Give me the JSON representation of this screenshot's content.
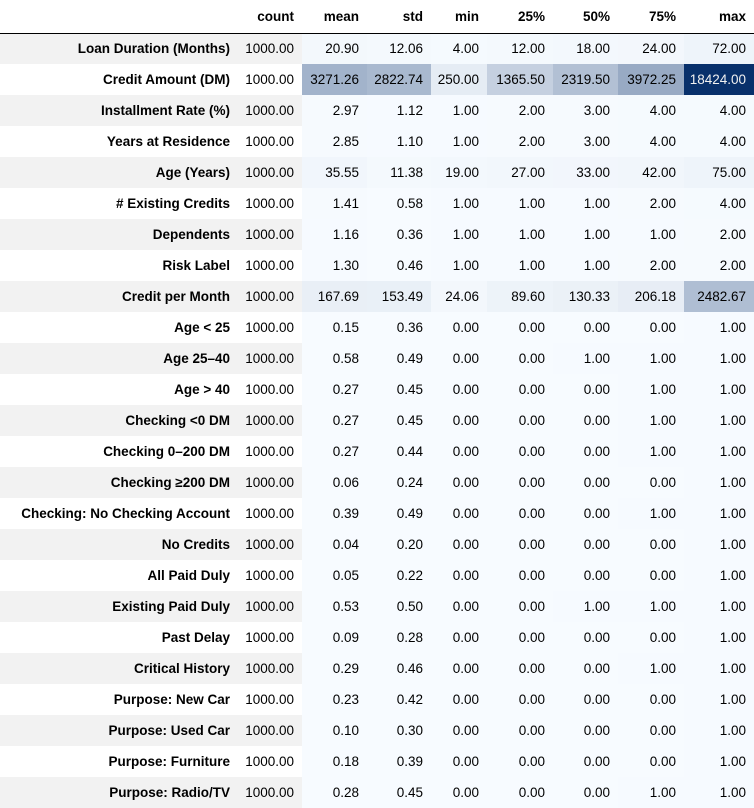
{
  "chart_data": {
    "type": "table",
    "columns": [
      "count",
      "mean",
      "std",
      "min",
      "25%",
      "50%",
      "75%",
      "max"
    ],
    "rows": [
      {
        "label": "Loan Duration (Months)",
        "values": [
          "1000.00",
          "20.90",
          "12.06",
          "4.00",
          "12.00",
          "18.00",
          "24.00",
          "72.00"
        ]
      },
      {
        "label": "Credit Amount (DM)",
        "values": [
          "1000.00",
          "3271.26",
          "2822.74",
          "250.00",
          "1365.50",
          "2319.50",
          "3972.25",
          "18424.00"
        ]
      },
      {
        "label": "Installment Rate (%)",
        "values": [
          "1000.00",
          "2.97",
          "1.12",
          "1.00",
          "2.00",
          "3.00",
          "4.00",
          "4.00"
        ]
      },
      {
        "label": "Years at Residence",
        "values": [
          "1000.00",
          "2.85",
          "1.10",
          "1.00",
          "2.00",
          "3.00",
          "4.00",
          "4.00"
        ]
      },
      {
        "label": "Age (Years)",
        "values": [
          "1000.00",
          "35.55",
          "11.38",
          "19.00",
          "27.00",
          "33.00",
          "42.00",
          "75.00"
        ]
      },
      {
        "label": "# Existing Credits",
        "values": [
          "1000.00",
          "1.41",
          "0.58",
          "1.00",
          "1.00",
          "1.00",
          "2.00",
          "4.00"
        ]
      },
      {
        "label": "Dependents",
        "values": [
          "1000.00",
          "1.16",
          "0.36",
          "1.00",
          "1.00",
          "1.00",
          "1.00",
          "2.00"
        ]
      },
      {
        "label": "Risk Label",
        "values": [
          "1000.00",
          "1.30",
          "0.46",
          "1.00",
          "1.00",
          "1.00",
          "2.00",
          "2.00"
        ]
      },
      {
        "label": "Credit per Month",
        "values": [
          "1000.00",
          "167.69",
          "153.49",
          "24.06",
          "89.60",
          "130.33",
          "206.18",
          "2482.67"
        ]
      },
      {
        "label": "Age < 25",
        "values": [
          "1000.00",
          "0.15",
          "0.36",
          "0.00",
          "0.00",
          "0.00",
          "0.00",
          "1.00"
        ]
      },
      {
        "label": "Age 25–40",
        "values": [
          "1000.00",
          "0.58",
          "0.49",
          "0.00",
          "0.00",
          "1.00",
          "1.00",
          "1.00"
        ]
      },
      {
        "label": "Age > 40",
        "values": [
          "1000.00",
          "0.27",
          "0.45",
          "0.00",
          "0.00",
          "0.00",
          "1.00",
          "1.00"
        ]
      },
      {
        "label": "Checking <0 DM",
        "values": [
          "1000.00",
          "0.27",
          "0.45",
          "0.00",
          "0.00",
          "0.00",
          "1.00",
          "1.00"
        ]
      },
      {
        "label": "Checking 0–200 DM",
        "values": [
          "1000.00",
          "0.27",
          "0.44",
          "0.00",
          "0.00",
          "0.00",
          "1.00",
          "1.00"
        ]
      },
      {
        "label": "Checking ≥200 DM",
        "values": [
          "1000.00",
          "0.06",
          "0.24",
          "0.00",
          "0.00",
          "0.00",
          "0.00",
          "1.00"
        ]
      },
      {
        "label": "Checking: No Checking Account",
        "values": [
          "1000.00",
          "0.39",
          "0.49",
          "0.00",
          "0.00",
          "0.00",
          "1.00",
          "1.00"
        ]
      },
      {
        "label": "No Credits",
        "values": [
          "1000.00",
          "0.04",
          "0.20",
          "0.00",
          "0.00",
          "0.00",
          "0.00",
          "1.00"
        ]
      },
      {
        "label": "All Paid Duly",
        "values": [
          "1000.00",
          "0.05",
          "0.22",
          "0.00",
          "0.00",
          "0.00",
          "0.00",
          "1.00"
        ]
      },
      {
        "label": "Existing Paid Duly",
        "values": [
          "1000.00",
          "0.53",
          "0.50",
          "0.00",
          "0.00",
          "1.00",
          "1.00",
          "1.00"
        ]
      },
      {
        "label": "Past Delay",
        "values": [
          "1000.00",
          "0.09",
          "0.28",
          "0.00",
          "0.00",
          "0.00",
          "0.00",
          "1.00"
        ]
      },
      {
        "label": "Critical History",
        "values": [
          "1000.00",
          "0.29",
          "0.46",
          "0.00",
          "0.00",
          "0.00",
          "1.00",
          "1.00"
        ]
      },
      {
        "label": "Purpose: New Car",
        "values": [
          "1000.00",
          "0.23",
          "0.42",
          "0.00",
          "0.00",
          "0.00",
          "0.00",
          "1.00"
        ]
      },
      {
        "label": "Purpose: Used Car",
        "values": [
          "1000.00",
          "0.10",
          "0.30",
          "0.00",
          "0.00",
          "0.00",
          "0.00",
          "1.00"
        ]
      },
      {
        "label": "Purpose: Furniture",
        "values": [
          "1000.00",
          "0.18",
          "0.39",
          "0.00",
          "0.00",
          "0.00",
          "0.00",
          "1.00"
        ]
      },
      {
        "label": "Purpose: Radio/TV",
        "values": [
          "1000.00",
          "0.28",
          "0.45",
          "0.00",
          "0.00",
          "0.00",
          "1.00",
          "1.00"
        ]
      }
    ],
    "heatmap": {
      "colored_columns": [
        "mean",
        "std",
        "min",
        "25%",
        "50%",
        "75%",
        "max"
      ],
      "scale_min": 0,
      "scale_max": 18424,
      "color_low": "#f7fbff",
      "color_high": "#08306b",
      "text_dark": "#000000",
      "text_light": "#f1f1f1"
    }
  }
}
